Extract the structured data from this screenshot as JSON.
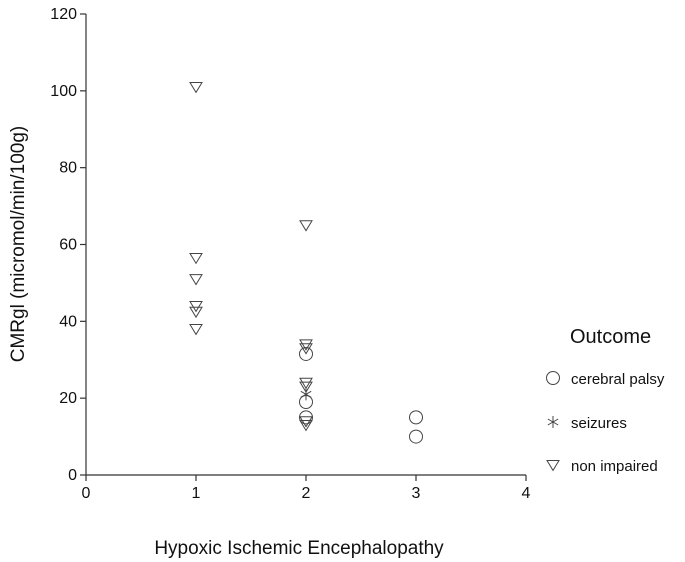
{
  "chart_data": {
    "type": "scatter",
    "title": "",
    "xlabel": "Hypoxic Ischemic Encephalopathy",
    "ylabel": "CMRgl (micromol/min/100g)",
    "xlim": [
      0,
      4
    ],
    "ylim": [
      0,
      120
    ],
    "x_ticks": [
      0,
      1,
      2,
      3,
      4
    ],
    "y_ticks": [
      0,
      20,
      40,
      60,
      80,
      100,
      120
    ],
    "grid": false,
    "legend": {
      "title": "Outcome",
      "position": "right"
    },
    "series": [
      {
        "name": "cerebral palsy",
        "marker": "circle",
        "color": "#444444",
        "points": [
          {
            "x": 2,
            "y": 31.5
          },
          {
            "x": 2,
            "y": 19
          },
          {
            "x": 2,
            "y": 15
          },
          {
            "x": 3,
            "y": 15
          },
          {
            "x": 3,
            "y": 10
          }
        ]
      },
      {
        "name": "seizures",
        "marker": "asterisk",
        "color": "#444444",
        "points": [
          {
            "x": 2,
            "y": 21
          }
        ]
      },
      {
        "name": "non impaired",
        "marker": "triangle-down",
        "color": "#444444",
        "points": [
          {
            "x": 1,
            "y": 101
          },
          {
            "x": 1,
            "y": 56.5
          },
          {
            "x": 1,
            "y": 51
          },
          {
            "x": 1,
            "y": 44
          },
          {
            "x": 1,
            "y": 42.5
          },
          {
            "x": 1,
            "y": 38
          },
          {
            "x": 2,
            "y": 65
          },
          {
            "x": 2,
            "y": 34
          },
          {
            "x": 2,
            "y": 33
          },
          {
            "x": 2,
            "y": 24
          },
          {
            "x": 2,
            "y": 23
          },
          {
            "x": 2,
            "y": 14
          },
          {
            "x": 2,
            "y": 13
          }
        ]
      }
    ]
  }
}
